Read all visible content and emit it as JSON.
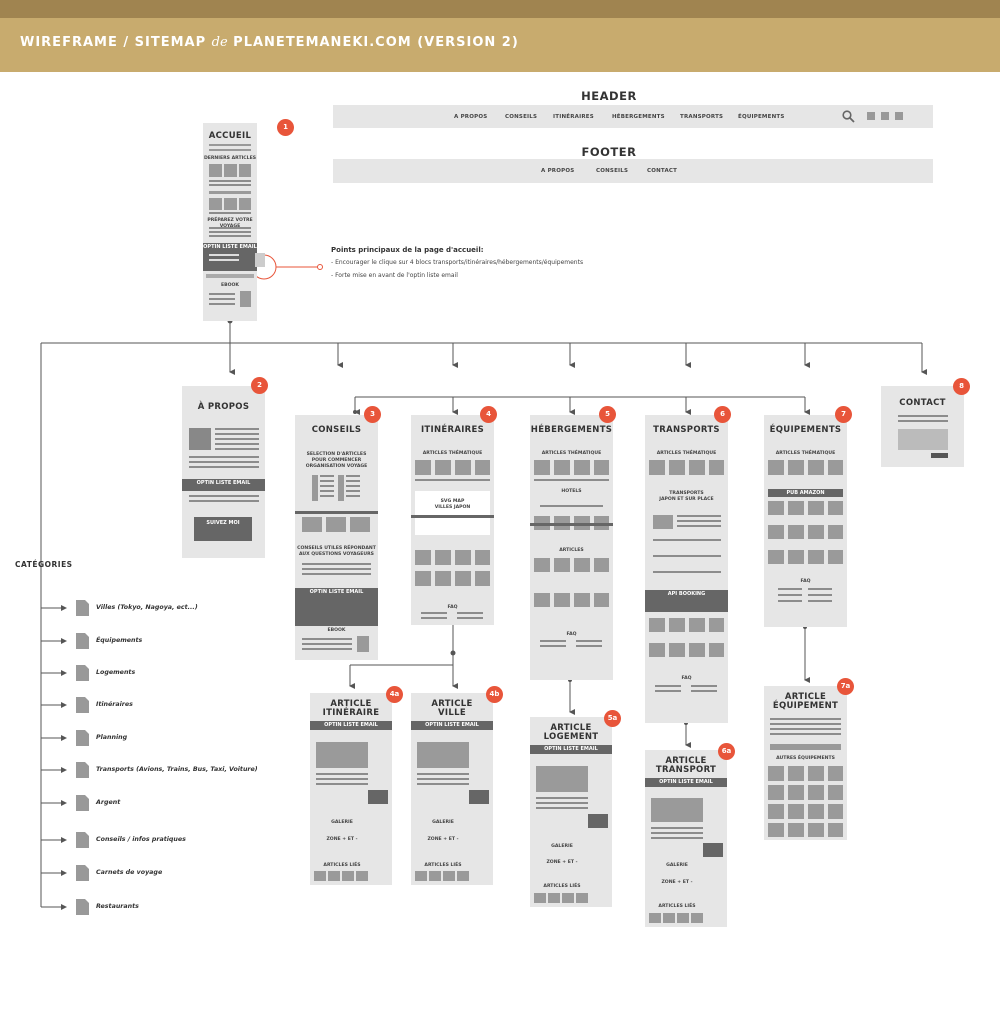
{
  "header_title": "WIREFRAME / SITEMAP de PLANETEMANEKI.COM (VERSION 2)",
  "header_title_parts": {
    "a": "WIREFRAME / SITEMAP ",
    "b": "de",
    "c": " PLANETEMANEKI.COM (VERSION 2)"
  },
  "header_section": {
    "label": "HEADER",
    "nav": [
      "A PROPOS",
      "CONSEILS",
      "ITINÉRAIRES",
      "HÉBERGEMENTS",
      "TRANSPORTS",
      "ÉQUIPEMENTS"
    ],
    "icons": [
      "search-icon",
      "twitter-icon",
      "facebook-icon",
      "instagram-icon"
    ]
  },
  "footer_section": {
    "label": "FOOTER",
    "nav": [
      "A PROPOS",
      "CONSEILS",
      "CONTACT"
    ]
  },
  "notes": {
    "title": "Points principaux de la page d'accueil:",
    "items": [
      "- Encourager le clique sur 4 blocs transports/itinéraires/hébergements/équipements",
      "- Forte mise en avant de l'optin liste email"
    ]
  },
  "categories": {
    "title": "CATÉGORIES",
    "items": [
      "Villes (Tokyo, Nagoya, ect...)",
      "Équipements",
      "Logements",
      "Itinéraires",
      "Planning",
      "Transports (Avions, Trains, Bus, Taxi, Voiture)",
      "Argent",
      "Conseils / infos pratiques",
      "Carnets de voyage",
      "Restaurants"
    ]
  },
  "pages": {
    "accueil": {
      "badge": "1",
      "title": "ACCUEIL",
      "derniers": "DERNIERS ARTICLES",
      "preparez": "PRÉPAREZ VOTRE VOYAGE",
      "optin": "OPTIN LISTE EMAIL",
      "ebook": "EBOOK"
    },
    "apropos": {
      "badge": "2",
      "title": "À PROPOS",
      "optin": "OPTIN LISTE EMAIL",
      "suivez": "SUIVEZ MOI"
    },
    "conseils": {
      "badge": "3",
      "title": "CONSEILS",
      "sel1": "SELECTION D'ARTICLES",
      "sel2": "POUR COMMENCER",
      "sel3": "ORGANISATION VOYAGE",
      "cu1": "CONSEILS UTILES RÉPONDANT",
      "cu2": "AUX QUESTIONS VOYAGEURS",
      "optin": "OPTIN LISTE EMAIL",
      "ebook": "EBOOK"
    },
    "itineraires": {
      "badge": "4",
      "title": "ITINÉRAIRES",
      "thematique": "ARTICLES THÉMATIQUE",
      "svg1": "SVG MAP",
      "svg2": "VILLES JAPON",
      "faq": "FAQ"
    },
    "hebergements": {
      "badge": "5",
      "title": "HÉBERGEMENTS",
      "thematique": "ARTICLES THÉMATIQUE",
      "hotels": "HOTELS",
      "articles": "ARTICLES",
      "faq": "FAQ"
    },
    "transports": {
      "badge": "6",
      "title": "TRANSPORTS",
      "thematique": "ARTICLES THÉMATIQUE",
      "tj1": "TRANSPORTS",
      "tj2": "JAPON ET SUR PLACE",
      "api": "API BOOKING",
      "faq": "FAQ"
    },
    "equipements": {
      "badge": "7",
      "title": "ÉQUIPEMENTS",
      "thematique": "ARTICLES THÉMATIQUE",
      "pub": "PUB AMAZON",
      "faq": "FAQ"
    },
    "contact": {
      "badge": "8",
      "title": "CONTACT"
    },
    "art_itin": {
      "badge": "4a",
      "t1": "ARTICLE",
      "t2": "ITINÉRAIRE",
      "optin": "OPTIN LISTE EMAIL",
      "galerie": "GALERIE",
      "zone": "ZONE + ET -",
      "lies": "ARTICLES LIÉS"
    },
    "art_ville": {
      "badge": "4b",
      "t1": "ARTICLE",
      "t2": "VILLE",
      "optin": "OPTIN LISTE EMAIL",
      "galerie": "GALERIE",
      "zone": "ZONE + ET -",
      "lies": "ARTICLES LIÉS"
    },
    "art_logement": {
      "badge": "5a",
      "t1": "ARTICLE",
      "t2": "LOGEMENT",
      "optin": "OPTIN LISTE EMAIL",
      "galerie": "GALERIE",
      "zone": "ZONE + ET -",
      "lies": "ARTICLES LIÉS"
    },
    "art_transport": {
      "badge": "6a",
      "t1": "ARTICLE",
      "t2": "TRANSPORT",
      "optin": "OPTIN LISTE EMAIL",
      "galerie": "GALERIE",
      "zone": "ZONE + ET -",
      "lies": "ARTICLES LIÉS"
    },
    "art_equip": {
      "badge": "7a",
      "t1": "ARTICLE",
      "t2": "ÉQUIPEMENT",
      "autres": "AUTRES ÉQUIPEMENTS"
    }
  }
}
